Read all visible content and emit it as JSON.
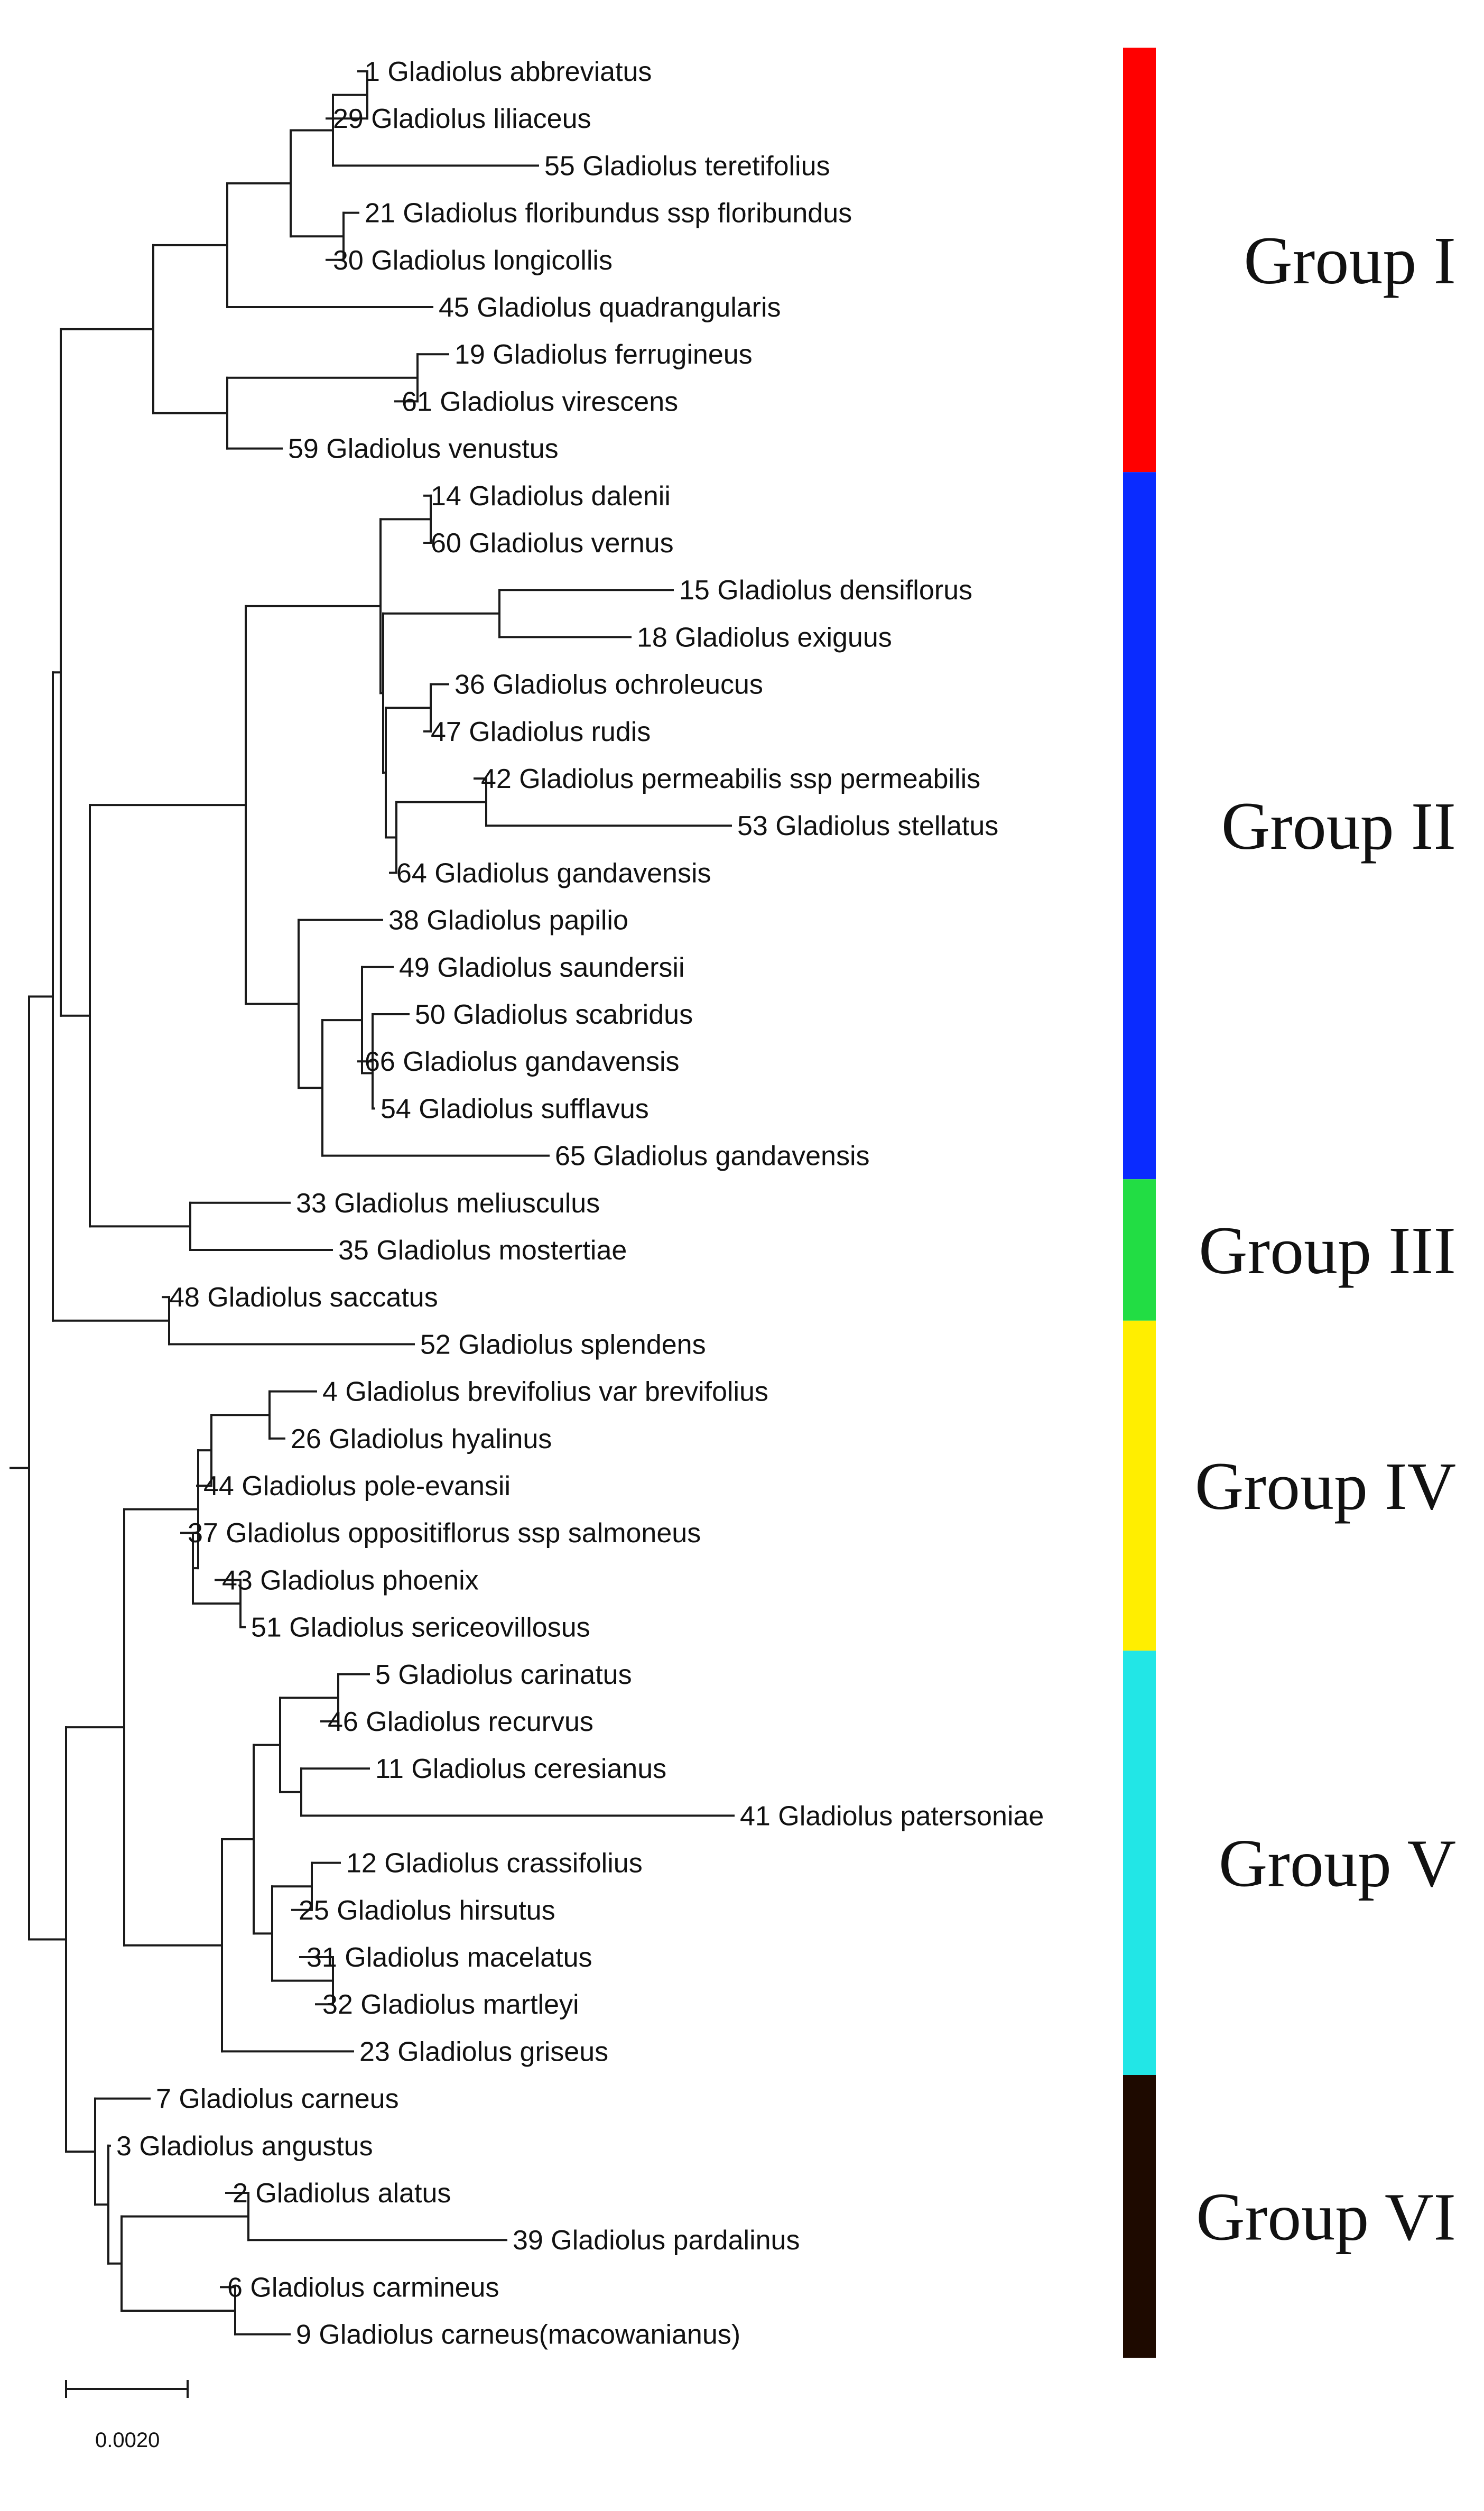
{
  "leaves": [
    {
      "id": "L1",
      "label": "1 Gladiolus abbreviatus"
    },
    {
      "id": "L29",
      "label": "29 Gladiolus liliaceus"
    },
    {
      "id": "L55",
      "label": "55 Gladiolus teretifolius"
    },
    {
      "id": "L21",
      "label": "21 Gladiolus floribundus ssp floribundus"
    },
    {
      "id": "L30",
      "label": "30 Gladiolus longicollis"
    },
    {
      "id": "L45",
      "label": "45 Gladiolus quadrangularis"
    },
    {
      "id": "L19",
      "label": "19 Gladiolus ferrugineus"
    },
    {
      "id": "L61",
      "label": "61 Gladiolus virescens"
    },
    {
      "id": "L59",
      "label": "59 Gladiolus venustus"
    },
    {
      "id": "L14",
      "label": "14 Gladiolus dalenii"
    },
    {
      "id": "L60",
      "label": "60 Gladiolus vernus"
    },
    {
      "id": "L15",
      "label": "15 Gladiolus densiflorus"
    },
    {
      "id": "L18",
      "label": "18 Gladiolus exiguus"
    },
    {
      "id": "L36",
      "label": "36 Gladiolus ochroleucus"
    },
    {
      "id": "L47",
      "label": "47 Gladiolus rudis"
    },
    {
      "id": "L42",
      "label": "42 Gladiolus permeabilis ssp permeabilis"
    },
    {
      "id": "L53",
      "label": "53 Gladiolus stellatus"
    },
    {
      "id": "L64",
      "label": "64 Gladiolus gandavensis"
    },
    {
      "id": "L38",
      "label": "38 Gladiolus papilio"
    },
    {
      "id": "L49",
      "label": "49 Gladiolus saundersii"
    },
    {
      "id": "L50",
      "label": "50 Gladiolus scabridus"
    },
    {
      "id": "L66",
      "label": "66 Gladiolus gandavensis"
    },
    {
      "id": "L54",
      "label": "54 Gladiolus sufflavus"
    },
    {
      "id": "L65",
      "label": "65 Gladiolus gandavensis"
    },
    {
      "id": "L33",
      "label": "33 Gladiolus meliusculus"
    },
    {
      "id": "L35",
      "label": "35 Gladiolus mostertiae"
    },
    {
      "id": "L48",
      "label": "48 Gladiolus saccatus"
    },
    {
      "id": "L52",
      "label": "52 Gladiolus splendens"
    },
    {
      "id": "L4",
      "label": "4 Gladiolus brevifolius var brevifolius"
    },
    {
      "id": "L26",
      "label": "26 Gladiolus hyalinus"
    },
    {
      "id": "L44",
      "label": "44 Gladiolus pole-evansii"
    },
    {
      "id": "L37",
      "label": "37 Gladiolus oppositiflorus ssp salmoneus"
    },
    {
      "id": "L43",
      "label": "43 Gladiolus phoenix"
    },
    {
      "id": "L51",
      "label": "51 Gladiolus sericeovillosus"
    },
    {
      "id": "L5",
      "label": "5 Gladiolus carinatus"
    },
    {
      "id": "L46",
      "label": "46 Gladiolus recurvus"
    },
    {
      "id": "L11",
      "label": "11 Gladiolus ceresianus"
    },
    {
      "id": "L41",
      "label": "41 Gladiolus patersoniae"
    },
    {
      "id": "L12",
      "label": "12 Gladiolus crassifolius"
    },
    {
      "id": "L25",
      "label": "25 Gladiolus hirsutus"
    },
    {
      "id": "L31",
      "label": "31 Gladiolus macelatus"
    },
    {
      "id": "L32",
      "label": "32 Gladiolus martleyi"
    },
    {
      "id": "L23",
      "label": "23 Gladiolus griseus"
    },
    {
      "id": "L7",
      "label": "7 Gladiolus carneus"
    },
    {
      "id": "L3",
      "label": "3 Gladiolus angustus"
    },
    {
      "id": "L2",
      "label": "2 Gladiolus alatus"
    },
    {
      "id": "L39",
      "label": "39 Gladiolus pardalinus"
    },
    {
      "id": "L6",
      "label": "6 Gladiolus carmineus"
    },
    {
      "id": "L9",
      "label": "9 Gladiolus carneus(macowanianus)"
    }
  ],
  "groups": [
    {
      "label": "Group I",
      "color": "#ff0000",
      "from": 0,
      "to": 8
    },
    {
      "label": "Group II",
      "color": "#0a2bff",
      "from": 9,
      "to": 23
    },
    {
      "label": "Group III",
      "color": "#22dd44",
      "from": 24,
      "to": 26
    },
    {
      "label": "Group IV",
      "color": "#ffee00",
      "from": 27,
      "to": 33
    },
    {
      "label": "Group V",
      "color": "#22e6e6",
      "from": 34,
      "to": 42
    },
    {
      "label": "Group VI",
      "color": "#1e0a00",
      "from": 43,
      "to": 48
    }
  ],
  "scale_bar": {
    "label": "0.0020",
    "length": 0.002
  }
}
